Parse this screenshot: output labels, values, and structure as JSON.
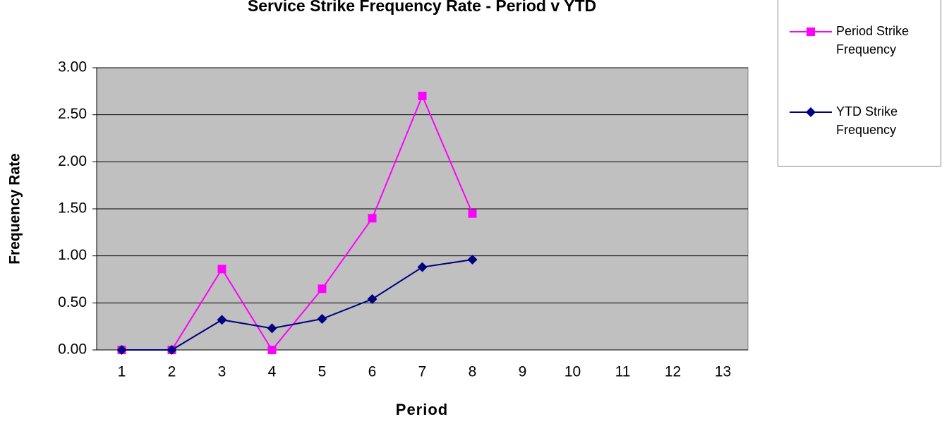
{
  "chart_data": {
    "type": "line",
    "title": "Service Strike Frequency Rate - Period v YTD",
    "xlabel": "Period",
    "ylabel": "Frequency Rate",
    "categories": [
      1,
      2,
      3,
      4,
      5,
      6,
      7,
      8,
      9,
      10,
      11,
      12,
      13
    ],
    "series": [
      {
        "name": "Period Strike Frequency",
        "color": "#ff00ff",
        "marker": "square",
        "values": [
          0,
          0,
          0.86,
          0,
          0.65,
          1.4,
          2.7,
          1.45,
          null,
          null,
          null,
          null,
          null
        ]
      },
      {
        "name": "YTD Strike Frequency",
        "color": "#000080",
        "marker": "diamond",
        "values": [
          0,
          0,
          0.32,
          0.23,
          0.33,
          0.54,
          0.88,
          0.96,
          null,
          null,
          null,
          null,
          null
        ]
      }
    ],
    "ylim": [
      0,
      3
    ],
    "yticks": [
      {
        "value": 0,
        "label": "0.00"
      },
      {
        "value": 0.5,
        "label": "0.50"
      },
      {
        "value": 1,
        "label": "1.00"
      },
      {
        "value": 1.5,
        "label": "1.50"
      },
      {
        "value": 2,
        "label": "2.00"
      },
      {
        "value": 2.5,
        "label": "2.50"
      },
      {
        "value": 3,
        "label": "3.00"
      }
    ],
    "grid": true,
    "background": "#c0c0c0",
    "legend": "upper right"
  }
}
